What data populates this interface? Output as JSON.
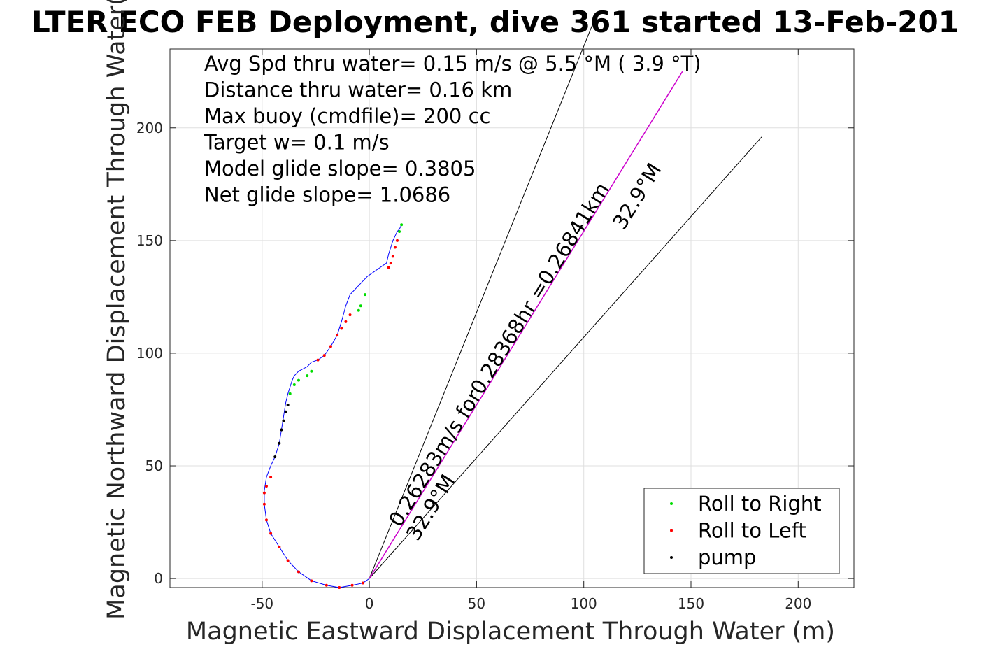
{
  "chart_data": {
    "type": "scatter",
    "title": "LTER ECO FEB Deployment, dive 361 started 13-Feb-201",
    "xlabel": "Magnetic Eastward Displacement Through Water (m)",
    "ylabel": "Magnetic Northward Displacement Through Water(",
    "xlim": [
      -93,
      226
    ],
    "ylim": [
      -4,
      235
    ],
    "xticks": [
      -50,
      0,
      50,
      100,
      150,
      200
    ],
    "xtick_labels": [
      "-50",
      "0",
      "50",
      "100",
      "150",
      "200"
    ],
    "yticks": [
      0,
      50,
      100,
      150,
      200
    ],
    "ytick_labels": [
      "0",
      "50",
      "100",
      "150",
      "200"
    ],
    "grid": true,
    "legend_position": "bottom-right",
    "annotations": {
      "stats": [
        "Avg Spd thru water=  0.15 m/s @   5.5 °M (  3.9 °T)",
        "Distance thru water=  0.16 km",
        "Max buoy (cmdfile)= 200 cc",
        "Target w= 0.1 m/s",
        "Model glide slope= 0.3805",
        "Net glide slope= 1.0686"
      ],
      "current_label": "0.26283m/s for0.28368hr =0.26841km",
      "heading_label_upper": "32.9°M",
      "heading_label_lower": "32.9°M"
    },
    "current_vector": {
      "x": [
        0,
        146
      ],
      "y": [
        0,
        225
      ]
    },
    "cone_lines": [
      {
        "x": [
          0,
          105
        ],
        "y": [
          0,
          248
        ]
      },
      {
        "x": [
          0,
          183
        ],
        "y": [
          0,
          196
        ]
      }
    ],
    "track": {
      "x": [
        0,
        -3,
        -8,
        -14,
        -20,
        -27,
        -33,
        -38,
        -42,
        -46,
        -48,
        -49,
        -49,
        -48,
        -46,
        -44,
        -42,
        -41,
        -40,
        -39,
        -38,
        -37,
        -36,
        -35,
        -33,
        -31,
        -29,
        -27,
        -24,
        -21,
        -18,
        -15,
        -13,
        -11,
        -9,
        -7,
        -5,
        -3,
        -1,
        2,
        5,
        8,
        9,
        10,
        11,
        12,
        13,
        14,
        15
      ],
      "y": [
        0,
        -2,
        -3,
        -4,
        -3,
        -1,
        3,
        8,
        14,
        20,
        26,
        33,
        39,
        45,
        50,
        54,
        60,
        66,
        72,
        78,
        82,
        85,
        88,
        90,
        92,
        93,
        94,
        96,
        97,
        99,
        103,
        108,
        114,
        121,
        126,
        128,
        130,
        132,
        134,
        136,
        138,
        140,
        144,
        147,
        150,
        152,
        154,
        155,
        157
      ]
    },
    "series": [
      {
        "name": "Roll to Right",
        "color": "#00dd00",
        "x": [
          -37,
          -35,
          -33,
          -29,
          -27,
          -5,
          -4,
          -2,
          14,
          15
        ],
        "y": [
          82,
          86,
          88,
          90,
          92,
          119,
          121,
          126,
          154,
          157
        ]
      },
      {
        "name": "Roll to Left",
        "color": "#ff0000",
        "x": [
          -3,
          -8,
          -14,
          -20,
          -27,
          -33,
          -38,
          -42,
          -46,
          -48,
          -49,
          -49,
          -48,
          -46,
          -24,
          -21,
          -18,
          -15,
          -13,
          -11,
          -9,
          9,
          10,
          11,
          12,
          13
        ],
        "y": [
          -2,
          -3,
          -4,
          -3,
          -1,
          3,
          8,
          14,
          20,
          26,
          33,
          38,
          41,
          45,
          97,
          99,
          103,
          108,
          111,
          114,
          117,
          138,
          140,
          143,
          147,
          150
        ]
      },
      {
        "name": "pump",
        "color": "#000000",
        "x": [
          -44,
          -42,
          -41,
          -40,
          -39,
          -38
        ],
        "y": [
          54,
          60,
          66,
          70,
          74,
          77
        ]
      }
    ]
  }
}
